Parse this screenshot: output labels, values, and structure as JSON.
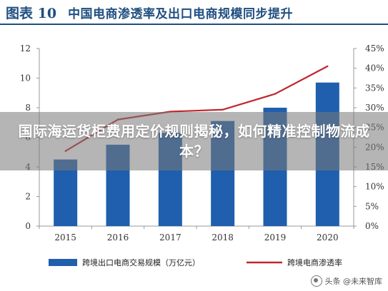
{
  "figure": {
    "label": "图表 10",
    "title": "中国电商渗透率及出口电商规模同步提升"
  },
  "overlay": {
    "headline": "国际海运货柜费用定价规则揭秘，如何精准控制物流成本？"
  },
  "watermark": {
    "text": "头条 @未来智库"
  },
  "colors": {
    "bar": "#1f5fad",
    "line": "#c0272d",
    "title": "#1f4f80",
    "axis": "#999999"
  },
  "chart_data": {
    "type": "bar",
    "categories": [
      "2015",
      "2016",
      "2017",
      "2018",
      "2019",
      "2020"
    ],
    "series": [
      {
        "name": "跨境出口电商交易规模（万亿元）",
        "type": "bar",
        "axis": "left",
        "values": [
          4.5,
          5.5,
          6.3,
          7.1,
          8.0,
          9.7
        ]
      },
      {
        "name": "跨境电商渗透率",
        "type": "line",
        "axis": "right",
        "values": [
          0.19,
          0.27,
          0.29,
          0.295,
          0.335,
          0.405
        ]
      }
    ],
    "yleft": {
      "min": 0,
      "max": 12,
      "ticks": [
        "0",
        "2",
        "4",
        "6",
        "8",
        "10",
        "12"
      ]
    },
    "yright": {
      "min": 0,
      "max": 0.45,
      "ticks": [
        "0%",
        "5%",
        "10%",
        "15%",
        "20%",
        "25%",
        "30%",
        "35%",
        "40%",
        "45%"
      ]
    },
    "legend": "bottom",
    "grid": false
  }
}
